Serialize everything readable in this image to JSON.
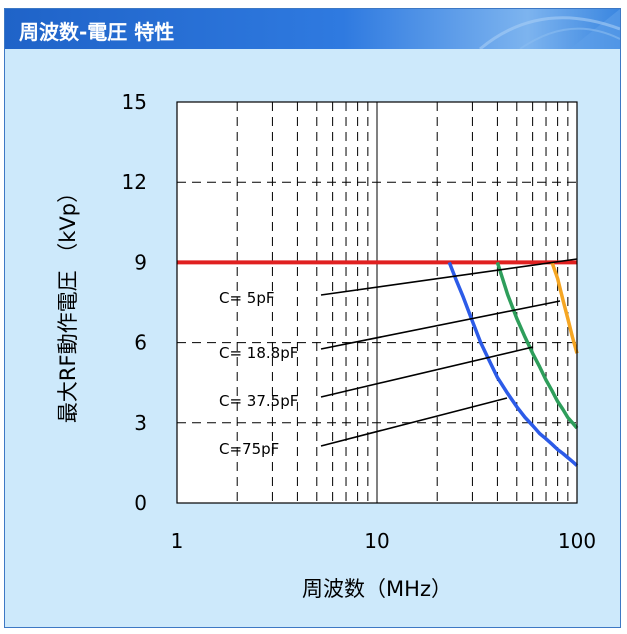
{
  "header": {
    "title": "周波数-電圧 特性"
  },
  "chart_data": {
    "type": "line",
    "title": "周波数-電圧 特性",
    "xlabel": "周波数（MHz）",
    "ylabel": "最大RF動作電圧 （kVp）",
    "xscale": "log",
    "xlim": [
      1,
      100
    ],
    "ylim": [
      0,
      15
    ],
    "xticks": [
      "1",
      "10",
      "100"
    ],
    "yticks": [
      "0",
      "3",
      "6",
      "9",
      "12",
      "15"
    ],
    "grid": true,
    "max_line": {
      "y": 9,
      "color": "#e02020"
    },
    "series": [
      {
        "label": "C= 5pF",
        "color": "#f5a623",
        "x": [
          75,
          80,
          85,
          90,
          95,
          100
        ],
        "y": [
          9.0,
          8.4,
          7.6,
          6.9,
          6.2,
          5.6
        ]
      },
      {
        "label": "C= 18.8pF",
        "color": "#2e9e5b",
        "x": [
          40,
          45,
          50,
          55,
          60,
          65,
          70,
          75,
          80,
          85,
          90,
          95,
          100
        ],
        "y": [
          9.0,
          7.8,
          6.9,
          6.2,
          5.6,
          5.1,
          4.6,
          4.2,
          3.8,
          3.5,
          3.2,
          3.0,
          2.8
        ]
      },
      {
        "label": "C= 37.5pF",
        "color": "#2c5be8",
        "x": [
          23,
          25,
          27,
          30,
          33,
          36,
          40,
          45,
          50,
          55,
          60,
          65,
          70,
          75,
          80,
          85,
          90,
          95,
          100
        ],
        "y": [
          9.0,
          8.3,
          7.7,
          6.8,
          6.0,
          5.4,
          4.7,
          4.1,
          3.6,
          3.2,
          2.9,
          2.6,
          2.4,
          2.2,
          2.0,
          1.85,
          1.7,
          1.55,
          1.4
        ]
      }
    ],
    "annotations": [
      {
        "text": "C= 5pF",
        "points_to": "C= 5pF"
      },
      {
        "text": "C= 18.8pF",
        "points_to": "C= 18.8pF"
      },
      {
        "text": "C= 37.5pF",
        "points_to": "C= 37.5pF"
      },
      {
        "text": "C=75pF",
        "points_to": "C=75pF"
      }
    ]
  }
}
